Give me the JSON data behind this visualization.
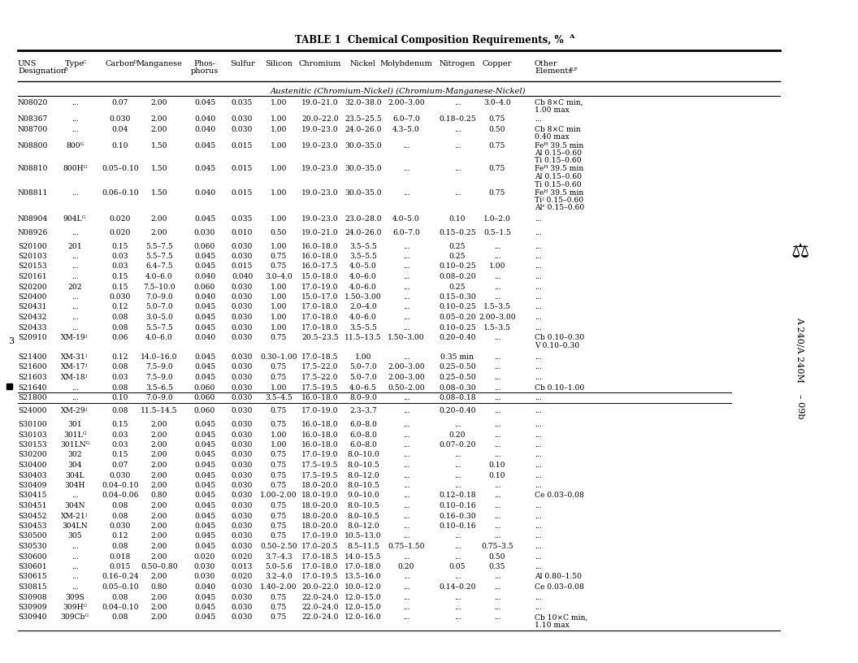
{
  "title": "TABLE 1  Chemical Composition Requirements, %",
  "title_sup": "A",
  "col_headers_line1": [
    "UNS",
    "Type",
    "Carbon",
    "Manganese",
    "Phos-",
    "Sulfur",
    "Silicon",
    "Chromium",
    "Nickel",
    "Molybdenum",
    "Nitrogen",
    "Copper",
    "Other"
  ],
  "col_headers_sup": [
    "B",
    "C",
    "D",
    "",
    "",
    "",
    "",
    "",
    "",
    "",
    "",
    "",
    ""
  ],
  "col_headers_line2": [
    "Designation",
    "",
    "",
    "",
    "phorus",
    "",
    "",
    "",
    "",
    "",
    "",
    "",
    "Elements"
  ],
  "col_headers_sup2": [
    "B",
    "",
    "",
    "",
    "",
    "",
    "",
    "",
    "",
    "",
    "",
    "",
    "E,F"
  ],
  "section_header": "Austenitic (Chromium-Nickel) (Chromium-Manganese-Nickel)",
  "rows": [
    [
      "N08020",
      "...",
      "0.07",
      "2.00",
      "0.045",
      "0.035",
      "1.00",
      "19.0–21.0",
      "32.0–38.0",
      "2.00–3.00",
      "...",
      "3.0–4.0",
      "Cb 8×C min,\n1.00 max"
    ],
    [
      "N08367",
      "...",
      "0.030",
      "2.00",
      "0.040",
      "0.030",
      "1.00",
      "20.0–22.0",
      "23.5–25.5",
      "6.0–7.0",
      "0.18–0.25",
      "0.75",
      "..."
    ],
    [
      "N08700",
      "...",
      "0.04",
      "2.00",
      "0.040",
      "0.030",
      "1.00",
      "19.0–23.0",
      "24.0–26.0",
      "4.3–5.0",
      "...",
      "0.50",
      "Cb 8×C min\n0.40 max"
    ],
    [
      "N08800",
      "800ᴳ",
      "0.10",
      "1.50",
      "0.045",
      "0.015",
      "1.00",
      "19.0–23.0",
      "30.0–35.0",
      "...",
      "...",
      "0.75",
      "Feᴴ 39.5 min\nAl 0.15–0.60\nTi 0.15–0.60"
    ],
    [
      "N08810",
      "800Hᴳ",
      "0.05–0.10",
      "1.50",
      "0.045",
      "0.015",
      "1.00",
      "19.0–23.0",
      "30.0–35.0",
      "...",
      "...",
      "0.75",
      "Feᴴ 39.5 min\nAl 0.15–0.60\nTi 0.15–0.60"
    ],
    [
      "N08811",
      "...",
      "0.06–0.10",
      "1.50",
      "0.040",
      "0.015",
      "1.00",
      "19.0–23.0",
      "30.0–35.0",
      "...",
      "...",
      "0.75",
      "Feᴴ 39.5 min\nTiʲ 0.15–0.60\nAlʳ 0.15–0.60"
    ],
    [
      "N08904",
      "904Lᴳ",
      "0.020",
      "2.00",
      "0.045",
      "0.035",
      "1.00",
      "19.0–23.0",
      "23.0–28.0",
      "4.0–5.0",
      "0.10",
      "1.0–2.0",
      "..."
    ],
    [
      "N08926",
      "...",
      "0.020",
      "2.00",
      "0.030",
      "0.010",
      "0.50",
      "19.0–21.0",
      "24.0–26.0",
      "6.0–7.0",
      "0.15–0.25",
      "0.5–1.5",
      "..."
    ],
    [
      "S20100",
      "201",
      "0.15",
      "5.5–7.5",
      "0.060",
      "0.030",
      "1.00",
      "16.0–18.0",
      "3.5–5.5",
      "...",
      "0.25",
      "...",
      "..."
    ],
    [
      "S20103",
      "...",
      "0.03",
      "5.5–7.5",
      "0.045",
      "0.030",
      "0.75",
      "16.0–18.0",
      "3.5–5.5",
      "...",
      "0.25",
      "...",
      "..."
    ],
    [
      "S20153",
      "...",
      "0.03",
      "6.4–7.5",
      "0.045",
      "0.015",
      "0.75",
      "16.0–17.5",
      "4.0–5.0",
      "...",
      "0.10–0.25",
      "1.00",
      "..."
    ],
    [
      "S20161",
      "...",
      "0.15",
      "4.0–6.0",
      "0.040",
      "0.040",
      "3.0–4.0",
      "15.0–18.0",
      "4.0–6.0",
      "...",
      "0.08–0.20",
      "...",
      "..."
    ],
    [
      "S20200",
      "202",
      "0.15",
      "7.5–10.0",
      "0.060",
      "0.030",
      "1.00",
      "17.0–19.0",
      "4.0–6.0",
      "...",
      "0.25",
      "...",
      "..."
    ],
    [
      "S20400",
      "...",
      "0.030",
      "7.0–9.0",
      "0.040",
      "0.030",
      "1.00",
      "15.0–17.0",
      "1.50–3.00",
      "...",
      "0.15–0.30",
      "...",
      "..."
    ],
    [
      "S20431",
      "...",
      "0.12",
      "5.0–7.0",
      "0.045",
      "0.030",
      "1.00",
      "17.0–18.0",
      "2.0–4.0",
      "...",
      "0.10–0.25",
      "1.5–3.5",
      "..."
    ],
    [
      "S20432",
      "...",
      "0.08",
      "3.0–5.0",
      "0.045",
      "0.030",
      "1.00",
      "17.0–18.0",
      "4.0–6.0",
      "...",
      "0.05–0.20",
      "2.00–3.00",
      "..."
    ],
    [
      "S20433",
      "...",
      "0.08",
      "5.5–7.5",
      "0.045",
      "0.030",
      "1.00",
      "17.0–18.0",
      "3.5–5.5",
      "...",
      "0.10–0.25",
      "1.5–3.5",
      "..."
    ],
    [
      "S20910",
      "XM-19ʲ",
      "0.06",
      "4.0–6.0",
      "0.040",
      "0.030",
      "0.75",
      "20.5–23.5",
      "11.5–13.5",
      "1.50–3.00",
      "0.20–0.40",
      "...",
      "Cb 0.10–0.30\nV 0.10–0.30"
    ],
    [
      "S21400",
      "XM-31ʲ",
      "0.12",
      "14.0–16.0",
      "0.045",
      "0.030",
      "0.30–1.00",
      "17.0–18.5",
      "1.00",
      "...",
      "0.35 min",
      "...",
      "..."
    ],
    [
      "S21600",
      "XM-17ʲ",
      "0.08",
      "7.5–9.0",
      "0.045",
      "0.030",
      "0.75",
      "17.5–22.0",
      "5.0–7.0",
      "2.00–3.00",
      "0.25–0.50",
      "...",
      "..."
    ],
    [
      "S21603",
      "XM-18ʲ",
      "0.03",
      "7.5–9.0",
      "0.045",
      "0.030",
      "0.75",
      "17.5–22.0",
      "5.0–7.0",
      "2.00–3.00",
      "0.25–0.50",
      "...",
      "..."
    ],
    [
      "S21640",
      "...",
      "0.08",
      "3.5–6.5",
      "0.060",
      "0.030",
      "1.00",
      "17.5–19.5",
      "4.0–6.5",
      "0.50–2.00",
      "0.08–0.30",
      "...",
      "Cb 0.10–1.00"
    ],
    [
      "S21800",
      "...",
      "0.10",
      "7.0–9.0",
      "0.060",
      "0.030",
      "3.5–4.5",
      "16.0–18.0",
      "8.0–9.0",
      "...",
      "0.08–0.18",
      "...",
      "..."
    ],
    [
      "S24000",
      "XM-29ʲ",
      "0.08",
      "11.5–14.5",
      "0.060",
      "0.030",
      "0.75",
      "17.0–19.0",
      "2.3–3.7",
      "...",
      "0.20–0.40",
      "...",
      "..."
    ],
    [
      "S30100",
      "301",
      "0.15",
      "2.00",
      "0.045",
      "0.030",
      "0.75",
      "16.0–18.0",
      "6.0–8.0",
      "...",
      "...",
      "...",
      "..."
    ],
    [
      "S30103",
      "301Lᴳ",
      "0.03",
      "2.00",
      "0.045",
      "0.030",
      "1.00",
      "16.0–18.0",
      "6.0–8.0",
      "...",
      "0.20",
      "...",
      "..."
    ],
    [
      "S30153",
      "301LNᴳ",
      "0.03",
      "2.00",
      "0.045",
      "0.030",
      "1.00",
      "16.0–18.0",
      "6.0–8.0",
      "...",
      "0.07–0.20",
      "...",
      "..."
    ],
    [
      "S30200",
      "302",
      "0.15",
      "2.00",
      "0.045",
      "0.030",
      "0.75",
      "17.0–19.0",
      "8.0–10.0",
      "...",
      "...",
      "...",
      "..."
    ],
    [
      "S30400",
      "304",
      "0.07",
      "2.00",
      "0.045",
      "0.030",
      "0.75",
      "17.5–19.5",
      "8.0–10.5",
      "...",
      "...",
      "0.10",
      "..."
    ],
    [
      "S30403",
      "304L",
      "0.030",
      "2.00",
      "0.045",
      "0.030",
      "0.75",
      "17.5–19.5",
      "8.0–12.0",
      "...",
      "...",
      "0.10",
      "..."
    ],
    [
      "S30409",
      "304H",
      "0.04–0.10",
      "2.00",
      "0.045",
      "0.030",
      "0.75",
      "18.0–20.0",
      "8.0–10.5",
      "...",
      "...",
      "...",
      "..."
    ],
    [
      "S30415",
      "...",
      "0.04–0.06",
      "0.80",
      "0.045",
      "0.030",
      "1.00–2.00",
      "18.0–19.0",
      "9.0–10.0",
      "...",
      "0.12–0.18",
      "...",
      "Ce 0.03–0.08"
    ],
    [
      "S30451",
      "304N",
      "0.08",
      "2.00",
      "0.045",
      "0.030",
      "0.75",
      "18.0–20.0",
      "8.0–10.5",
      "...",
      "0.10–0.16",
      "...",
      "..."
    ],
    [
      "S30452",
      "XM-21ʲ",
      "0.08",
      "2.00",
      "0.045",
      "0.030",
      "0.75",
      "18.0–20.0",
      "8.0–10.5",
      "...",
      "0.16–0.30",
      "...",
      "..."
    ],
    [
      "S30453",
      "304LN",
      "0.030",
      "2.00",
      "0.045",
      "0.030",
      "0.75",
      "18.0–20.0",
      "8.0–12.0",
      "...",
      "0.10–0.16",
      "...",
      "..."
    ],
    [
      "S30500",
      "305",
      "0.12",
      "2.00",
      "0.045",
      "0.030",
      "0.75",
      "17.0–19.0",
      "10.5–13.0",
      "...",
      "...",
      "...",
      "..."
    ],
    [
      "S30530",
      "...",
      "0.08",
      "2.00",
      "0.045",
      "0.030",
      "0.50–2.50",
      "17.0–20.5",
      "8.5–11.5",
      "0.75–1.50",
      "...",
      "0.75–3.5",
      "..."
    ],
    [
      "S30600",
      "...",
      "0.018",
      "2.00",
      "0.020",
      "0.020",
      "3.7–4.3",
      "17.0–18.5",
      "14.0–15.5",
      "...",
      "...",
      "0.50",
      "..."
    ],
    [
      "S30601",
      "...",
      "0.015",
      "0.50–0.80",
      "0.030",
      "0.013",
      "5.0–5.6",
      "17.0–18.0",
      "17.0–18.0",
      "0.20",
      "0.05",
      "0.35",
      "..."
    ],
    [
      "S30615",
      "...",
      "0.16–0.24",
      "2.00",
      "0.030",
      "0.020",
      "3.2–4.0",
      "17.0–19.5",
      "13.5–16.0",
      "...",
      "...",
      "...",
      "Al 0.80–1.50"
    ],
    [
      "S30815",
      "...",
      "0.05–0.10",
      "0.80",
      "0.040",
      "0.030",
      "1.40–2.00",
      "20.0–22.0",
      "10.0–12.0",
      "...",
      "0.14–0.20",
      "...",
      "Ce 0.03–0.08"
    ],
    [
      "S30908",
      "309S",
      "0.08",
      "2.00",
      "0.045",
      "0.030",
      "0.75",
      "22.0–24.0",
      "12.0–15.0",
      "...",
      "...",
      "...",
      "..."
    ],
    [
      "S30909",
      "309Hᴳ",
      "0.04–0.10",
      "2.00",
      "0.045",
      "0.030",
      "0.75",
      "22.0–24.0",
      "12.0–15.0",
      "...",
      "...",
      "...",
      "..."
    ],
    [
      "S30940",
      "309Cbᴳ",
      "0.08",
      "2.00",
      "0.045",
      "0.030",
      "0.75",
      "22.0–24.0",
      "12.0–16.0",
      "...",
      "...",
      "...",
      "Cb 10×C min,\n1.10 max"
    ]
  ],
  "underlined_rows": [
    21,
    22
  ],
  "gap_before_rows": [
    0,
    6,
    7,
    8,
    18,
    23,
    24
  ],
  "side_text_line1": "A 240/A 240M",
  "side_text_line2": "– 09b",
  "page_number": "3",
  "marker_row": 21,
  "background_color": "#ffffff"
}
